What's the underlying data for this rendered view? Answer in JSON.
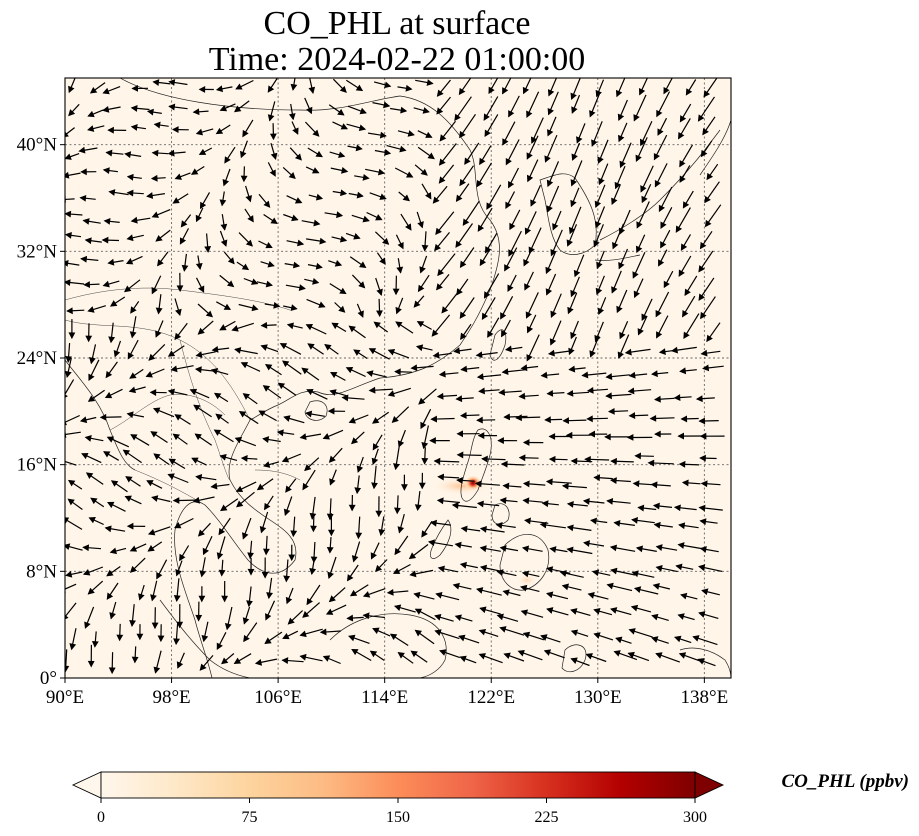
{
  "figure": {
    "title_line1": "CO_PHL at surface",
    "title_line2": "Time: 2024-02-22 01:00:00"
  },
  "map": {
    "lon_range": [
      90,
      140
    ],
    "lat_range": [
      0,
      45
    ],
    "x_ticks": [
      {
        "value": 90,
        "label": "90°E"
      },
      {
        "value": 98,
        "label": "98°E"
      },
      {
        "value": 106,
        "label": "106°E"
      },
      {
        "value": 114,
        "label": "114°E"
      },
      {
        "value": 122,
        "label": "122°E"
      },
      {
        "value": 130,
        "label": "130°E"
      },
      {
        "value": 138,
        "label": "138°E"
      }
    ],
    "y_ticks": [
      {
        "value": 0,
        "label": "0°"
      },
      {
        "value": 8,
        "label": "8°N"
      },
      {
        "value": 16,
        "label": "16°N"
      },
      {
        "value": 24,
        "label": "24°N"
      },
      {
        "value": 32,
        "label": "32°N"
      },
      {
        "value": 40,
        "label": "40°N"
      }
    ],
    "background_color": "#fff5e8",
    "hotspot": {
      "lon": 120.9,
      "lat": 14.6,
      "note_color": "#b01010"
    }
  },
  "colorbar": {
    "label": "CO_PHL (ppbv)",
    "min": 0,
    "max": 300,
    "ticks": [
      "0",
      "75",
      "150",
      "225",
      "300"
    ],
    "colormap": "OrRd",
    "stops": [
      "#fff7ec",
      "#fee8c8",
      "#fdd49e",
      "#fdbb84",
      "#fc8d59",
      "#ef6548",
      "#d7301f",
      "#b30000",
      "#7f0000"
    ],
    "extend": "both"
  }
}
